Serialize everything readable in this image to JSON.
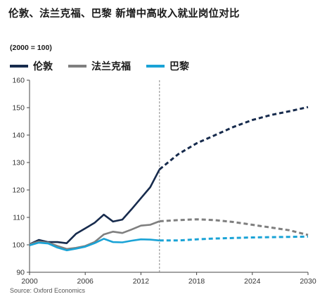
{
  "chart_data": {
    "type": "line",
    "title": "伦敦、法兰克福、巴黎 新增中高收入就业岗位对比",
    "unit_label": "(2000 = 100)",
    "source": "Source: Oxford Economics",
    "xlim": [
      2000,
      2030
    ],
    "ylim": [
      90,
      160
    ],
    "forecast_start": 2014,
    "x_ticks": [
      2000,
      2006,
      2012,
      2018,
      2024,
      2030
    ],
    "y_ticks": [
      90,
      100,
      110,
      120,
      130,
      140,
      150,
      160
    ],
    "grid": false,
    "legend_position": "top-left",
    "series": [
      {
        "name": "伦敦",
        "color": "#172b4d",
        "x": [
          2000,
          2001,
          2002,
          2003,
          2004,
          2005,
          2006,
          2007,
          2008,
          2009,
          2010,
          2011,
          2012,
          2013,
          2014,
          2016,
          2018,
          2020,
          2022,
          2024,
          2026,
          2028,
          2030
        ],
        "values": [
          100.2,
          101.8,
          101.0,
          101.0,
          100.6,
          104.0,
          106.0,
          108.0,
          111.0,
          108.5,
          109.2,
          113.0,
          117.0,
          121.0,
          127.5,
          133.0,
          137.0,
          140.0,
          143.0,
          145.5,
          147.3,
          148.7,
          150.2
        ]
      },
      {
        "name": "法兰克福",
        "color": "#7f7f7f",
        "x": [
          2000,
          2001,
          2002,
          2003,
          2004,
          2005,
          2006,
          2007,
          2008,
          2009,
          2010,
          2011,
          2012,
          2013,
          2014,
          2016,
          2018,
          2020,
          2022,
          2024,
          2026,
          2028,
          2030
        ],
        "values": [
          100.2,
          101.2,
          100.8,
          99.6,
          98.5,
          98.9,
          99.6,
          101.0,
          103.8,
          104.8,
          104.3,
          105.6,
          107.0,
          107.3,
          108.6,
          109.0,
          109.3,
          109.0,
          108.3,
          107.3,
          106.3,
          105.3,
          103.6
        ]
      },
      {
        "name": "巴黎",
        "color": "#1aa3d6",
        "x": [
          2000,
          2001,
          2002,
          2003,
          2004,
          2005,
          2006,
          2007,
          2008,
          2009,
          2010,
          2011,
          2012,
          2013,
          2014,
          2016,
          2018,
          2020,
          2022,
          2024,
          2026,
          2028,
          2030
        ],
        "values": [
          99.8,
          100.8,
          100.5,
          99.0,
          98.0,
          98.6,
          99.3,
          100.6,
          102.2,
          101.0,
          100.9,
          101.5,
          102.0,
          101.9,
          101.6,
          101.6,
          102.0,
          102.3,
          102.5,
          102.7,
          102.8,
          102.9,
          103.0
        ]
      }
    ]
  }
}
